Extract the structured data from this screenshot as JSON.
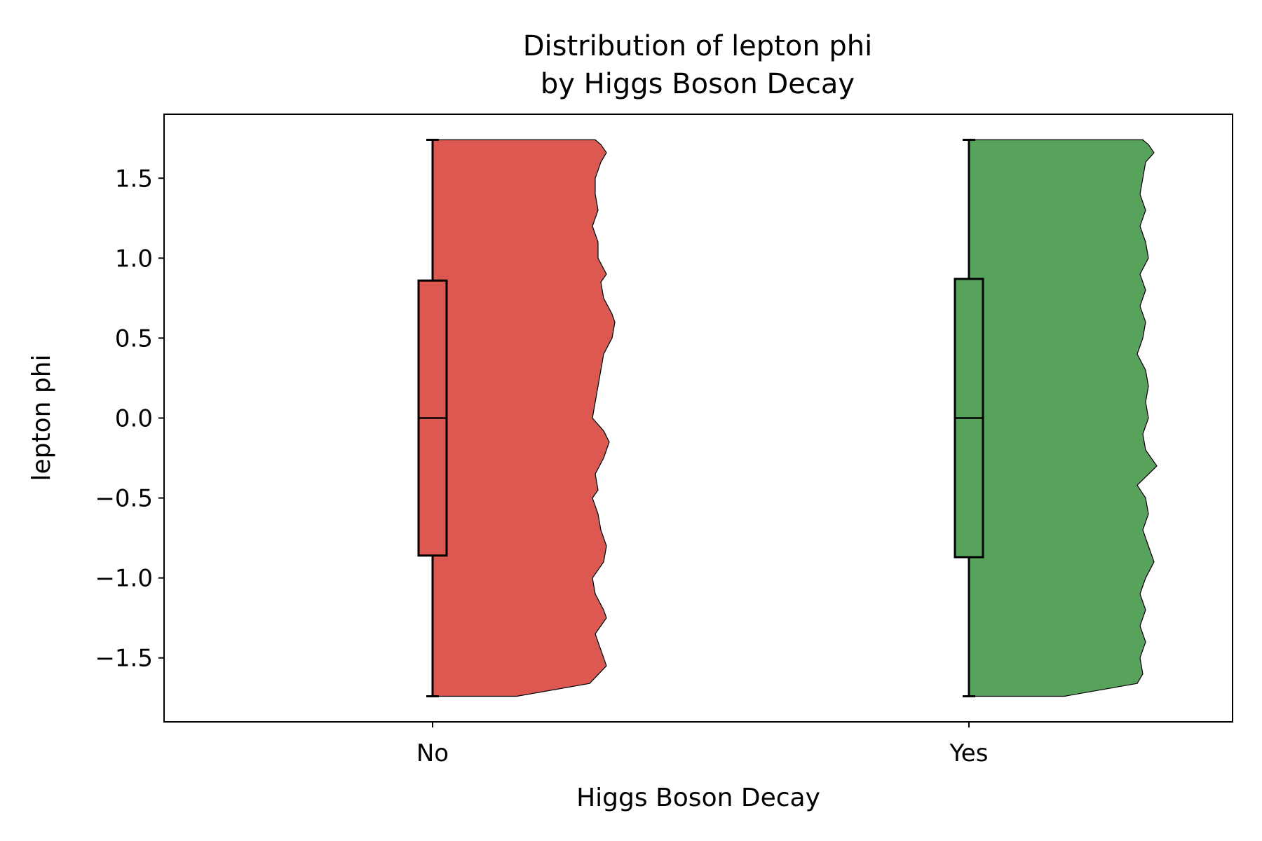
{
  "chart_data": {
    "type": "violin",
    "title": [
      "Distribution of lepton phi",
      "by Higgs Boson Decay"
    ],
    "xlabel": "Higgs Boson Decay",
    "ylabel": "lepton phi",
    "categories": [
      "No",
      "Yes"
    ],
    "ylim": [
      -1.9,
      1.9
    ],
    "yticks": [
      1.5,
      1.0,
      0.5,
      0.0,
      -0.5,
      -1.0,
      -1.5
    ],
    "ytick_labels": [
      "1.5",
      "1.0",
      "0.5",
      "0.0",
      "−0.5",
      "−1.0",
      "−1.5"
    ],
    "grid": false,
    "legend": "none",
    "colors": [
      "#dd5850",
      "#58a35c"
    ],
    "series": [
      {
        "category": "No",
        "box": {
          "whisker_low": -1.74,
          "q1": -0.86,
          "median": 0.0,
          "q3": 0.86,
          "whisker_high": 1.74
        },
        "density": {
          "y": [
            1.74,
            1.71,
            1.66,
            1.6,
            1.5,
            1.4,
            1.3,
            1.2,
            1.1,
            1.0,
            0.9,
            0.85,
            0.75,
            0.65,
            0.6,
            0.5,
            0.4,
            0.3,
            0.2,
            0.1,
            0.0,
            -0.08,
            -0.15,
            -0.25,
            -0.35,
            -0.45,
            -0.5,
            -0.6,
            -0.7,
            -0.8,
            -0.9,
            -1.0,
            -1.1,
            -1.2,
            -1.25,
            -1.35,
            -1.45,
            -1.55,
            -1.66,
            -1.74
          ],
          "width": [
            0.58,
            0.6,
            0.62,
            0.6,
            0.58,
            0.58,
            0.59,
            0.57,
            0.59,
            0.59,
            0.62,
            0.6,
            0.61,
            0.64,
            0.65,
            0.64,
            0.61,
            0.6,
            0.59,
            0.58,
            0.57,
            0.61,
            0.63,
            0.61,
            0.58,
            0.59,
            0.57,
            0.59,
            0.6,
            0.62,
            0.61,
            0.57,
            0.58,
            0.61,
            0.62,
            0.58,
            0.6,
            0.62,
            0.56,
            0.3
          ]
        }
      },
      {
        "category": "Yes",
        "box": {
          "whisker_low": -1.74,
          "q1": -0.87,
          "median": 0.0,
          "q3": 0.87,
          "whisker_high": 1.74
        },
        "density": {
          "y": [
            1.74,
            1.71,
            1.66,
            1.6,
            1.5,
            1.4,
            1.3,
            1.2,
            1.1,
            1.0,
            0.9,
            0.8,
            0.7,
            0.6,
            0.5,
            0.4,
            0.3,
            0.2,
            0.1,
            0.0,
            -0.1,
            -0.2,
            -0.3,
            -0.42,
            -0.5,
            -0.6,
            -0.7,
            -0.8,
            -0.9,
            -1.0,
            -1.1,
            -1.2,
            -1.3,
            -1.4,
            -1.5,
            -1.6,
            -1.66,
            -1.74
          ],
          "width": [
            0.62,
            0.64,
            0.66,
            0.63,
            0.62,
            0.61,
            0.63,
            0.61,
            0.63,
            0.64,
            0.61,
            0.63,
            0.61,
            0.63,
            0.62,
            0.6,
            0.63,
            0.64,
            0.63,
            0.64,
            0.62,
            0.63,
            0.67,
            0.6,
            0.63,
            0.64,
            0.62,
            0.64,
            0.66,
            0.63,
            0.61,
            0.63,
            0.61,
            0.63,
            0.61,
            0.62,
            0.6,
            0.34
          ]
        }
      }
    ]
  }
}
